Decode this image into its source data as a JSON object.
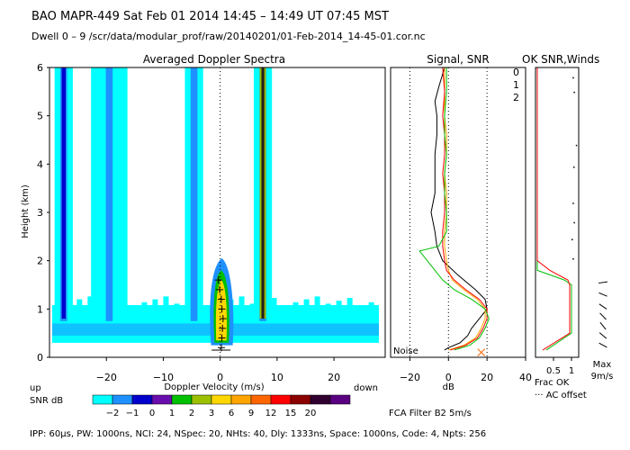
{
  "header": {
    "line1": "BAO  MAPR-449  Sat Feb 01 2014 14:45 – 14:49 UT 07:45 MST",
    "line2": "Dwell  0 –  9   /scr/data/modular_prof/raw/20140201/01-Feb-2014_14-45-01.cor.nc"
  },
  "footer": {
    "params": "IPP:  60μs,  PW: 1000ns,  NCI:  24,  NSpec: 20,  NHts: 40,  Dly: 1333ns,  Space: 1000ns,  Code: 4,  Npts: 256",
    "fca_filter": "FCA Filter B2   5m/s"
  },
  "colors": {
    "colorbar": [
      "#00ffff",
      "#1e90ff",
      "#0000cd",
      "#6a0dad",
      "#00c000",
      "#9ac000",
      "#ffd700",
      "#ffa500",
      "#ff6600",
      "#ff0000",
      "#8b0000",
      "#300030",
      "#5a0080"
    ]
  },
  "chart_data": [
    {
      "type": "heatmap",
      "title": "Averaged Doppler Spectra",
      "xlabel": "Doppler Velocity (m/s)",
      "ylabel": "Height (km)",
      "xlim": [
        -30,
        29
      ],
      "ylim": [
        0,
        6
      ],
      "x_ticks": [
        -20,
        -10,
        0,
        10,
        20
      ],
      "y_ticks": [
        0,
        1,
        2,
        3,
        4,
        5,
        6
      ],
      "x_label_left": "up",
      "x_label_right": "down",
      "colorbar_label": "SNR dB",
      "colorbar_ticks": [
        -2,
        -1,
        0,
        1,
        2,
        3,
        6,
        9,
        12,
        15,
        20
      ],
      "colorbar_tick_labels": [
        "−2",
        "−1",
        "0",
        "1",
        "2",
        "3",
        "6",
        "9",
        "12",
        "15",
        "20"
      ],
      "vertical_stripes_velocity": [
        -27.5,
        -19.5,
        -4.6,
        7.5
      ],
      "peak_profile": [
        {
          "height": 0.2,
          "velocity": 0.2
        },
        {
          "height": 0.4,
          "velocity": 0.3
        },
        {
          "height": 0.6,
          "velocity": 0.4
        },
        {
          "height": 0.8,
          "velocity": 0.5
        },
        {
          "height": 1.0,
          "velocity": 0.3
        },
        {
          "height": 1.2,
          "velocity": 0.2
        },
        {
          "height": 1.4,
          "velocity": -0.1
        },
        {
          "height": 1.6,
          "velocity": -0.3
        }
      ]
    },
    {
      "type": "line",
      "title": "Signal, SNR",
      "xlabel": "dB",
      "ylim": [
        0,
        6
      ],
      "xlim": [
        -30,
        40
      ],
      "x_ticks": [
        -20,
        0,
        20,
        40
      ],
      "annotation": "Noise",
      "legend": [
        "0",
        "1",
        "2"
      ],
      "legend_colors": [
        "#ff0000",
        "#ffa500",
        "#00c000"
      ],
      "series": [
        {
          "color": "#000000",
          "x": [
            -2,
            -5,
            -7,
            -6,
            -6,
            -7,
            -7,
            -7,
            -9,
            -7,
            -6,
            -3,
            5,
            14,
            19,
            20,
            16,
            12,
            10,
            6,
            0,
            -2
          ],
          "y": [
            6.0,
            5.6,
            5.3,
            5.0,
            4.6,
            4.2,
            3.8,
            3.4,
            3.0,
            2.6,
            2.3,
            2.0,
            1.7,
            1.4,
            1.2,
            1.0,
            0.8,
            0.6,
            0.45,
            0.3,
            0.2,
            0.15
          ]
        },
        {
          "color": "#ffa500",
          "x": [
            -2,
            -2,
            -2,
            -1,
            -1,
            -2,
            -1,
            -1,
            -2,
            -2,
            -1,
            0,
            2,
            8,
            15,
            19,
            19,
            17,
            14,
            8,
            0
          ],
          "y": [
            6.0,
            5.5,
            5.0,
            4.6,
            4.2,
            3.8,
            3.4,
            3.0,
            2.6,
            2.3,
            2.0,
            1.8,
            1.6,
            1.4,
            1.2,
            1.0,
            0.8,
            0.6,
            0.4,
            0.25,
            0.15
          ]
        },
        {
          "color": "#ff0000",
          "x": [
            -3,
            -2,
            -3,
            -2,
            -2,
            -3,
            -2,
            -2,
            -3,
            -3,
            -2,
            -1,
            3,
            9,
            16,
            20,
            20,
            18,
            15,
            9,
            1
          ],
          "y": [
            6.0,
            5.5,
            5.0,
            4.6,
            4.2,
            3.8,
            3.4,
            3.0,
            2.6,
            2.3,
            2.0,
            1.8,
            1.6,
            1.4,
            1.2,
            1.0,
            0.8,
            0.6,
            0.4,
            0.25,
            0.15
          ]
        },
        {
          "color": "#00c000",
          "x": [
            -1,
            -1,
            -2,
            -2,
            -1,
            -2,
            -2,
            -1,
            -1,
            -5,
            -15,
            -9,
            -3,
            3,
            12,
            19,
            21,
            19,
            16,
            11,
            3
          ],
          "y": [
            6.0,
            5.5,
            5.0,
            4.6,
            4.2,
            3.8,
            3.4,
            3.0,
            2.6,
            2.3,
            2.2,
            1.9,
            1.6,
            1.4,
            1.2,
            1.0,
            0.8,
            0.6,
            0.4,
            0.25,
            0.15
          ]
        }
      ],
      "markers": [
        {
          "x": 17,
          "y": 0.1,
          "symbol": "x",
          "color": "#ff6600"
        }
      ]
    },
    {
      "type": "line",
      "title": "OK  SNR,Winds",
      "xlabel": "Frac OK",
      "xlabel2": "··· AC offset",
      "ylim": [
        0,
        6
      ],
      "xlim": [
        0,
        1.2
      ],
      "x_ticks": [
        0.5,
        1
      ],
      "x_tick_labels": [
        "0.5",
        "1"
      ],
      "series": [
        {
          "color": "#00c000",
          "x": [
            0.05,
            0.05,
            0.05,
            0.05,
            0.8,
            1.0,
            1.0,
            1.0,
            0.3
          ],
          "y": [
            6.0,
            3.0,
            2.0,
            1.8,
            1.6,
            1.5,
            1.0,
            0.5,
            0.15
          ]
        },
        {
          "color": "#ff0000",
          "x": [
            0.05,
            0.05,
            0.4,
            0.9,
            0.95,
            0.95,
            0.95,
            0.2
          ],
          "y": [
            6.0,
            2.0,
            1.8,
            1.6,
            1.5,
            1.0,
            0.5,
            0.15
          ]
        }
      ],
      "ac_offset_dots": [
        {
          "x": 1.03,
          "y": 5.8
        },
        {
          "x": 1.06,
          "y": 5.5
        },
        {
          "x": 1.12,
          "y": 4.4
        },
        {
          "x": 1.05,
          "y": 3.95
        },
        {
          "x": 1.03,
          "y": 3.2
        },
        {
          "x": 1.06,
          "y": 2.8
        },
        {
          "x": 1.0,
          "y": 2.45
        },
        {
          "x": 1.03,
          "y": 2.05
        }
      ]
    },
    {
      "type": "scatter",
      "title": "Winds",
      "xlabel": "Max",
      "xlabel2": "9m/s",
      "barbs": [
        {
          "y": 1.55,
          "dir": 0.15
        },
        {
          "y": 1.3,
          "dir": -0.4
        },
        {
          "y": 1.05,
          "dir": -0.6
        },
        {
          "y": 0.85,
          "dir": -0.8
        },
        {
          "y": 0.65,
          "dir": -0.9
        },
        {
          "y": 0.45,
          "dir": -0.7
        },
        {
          "y": 0.25,
          "dir": -0.5
        }
      ]
    }
  ]
}
